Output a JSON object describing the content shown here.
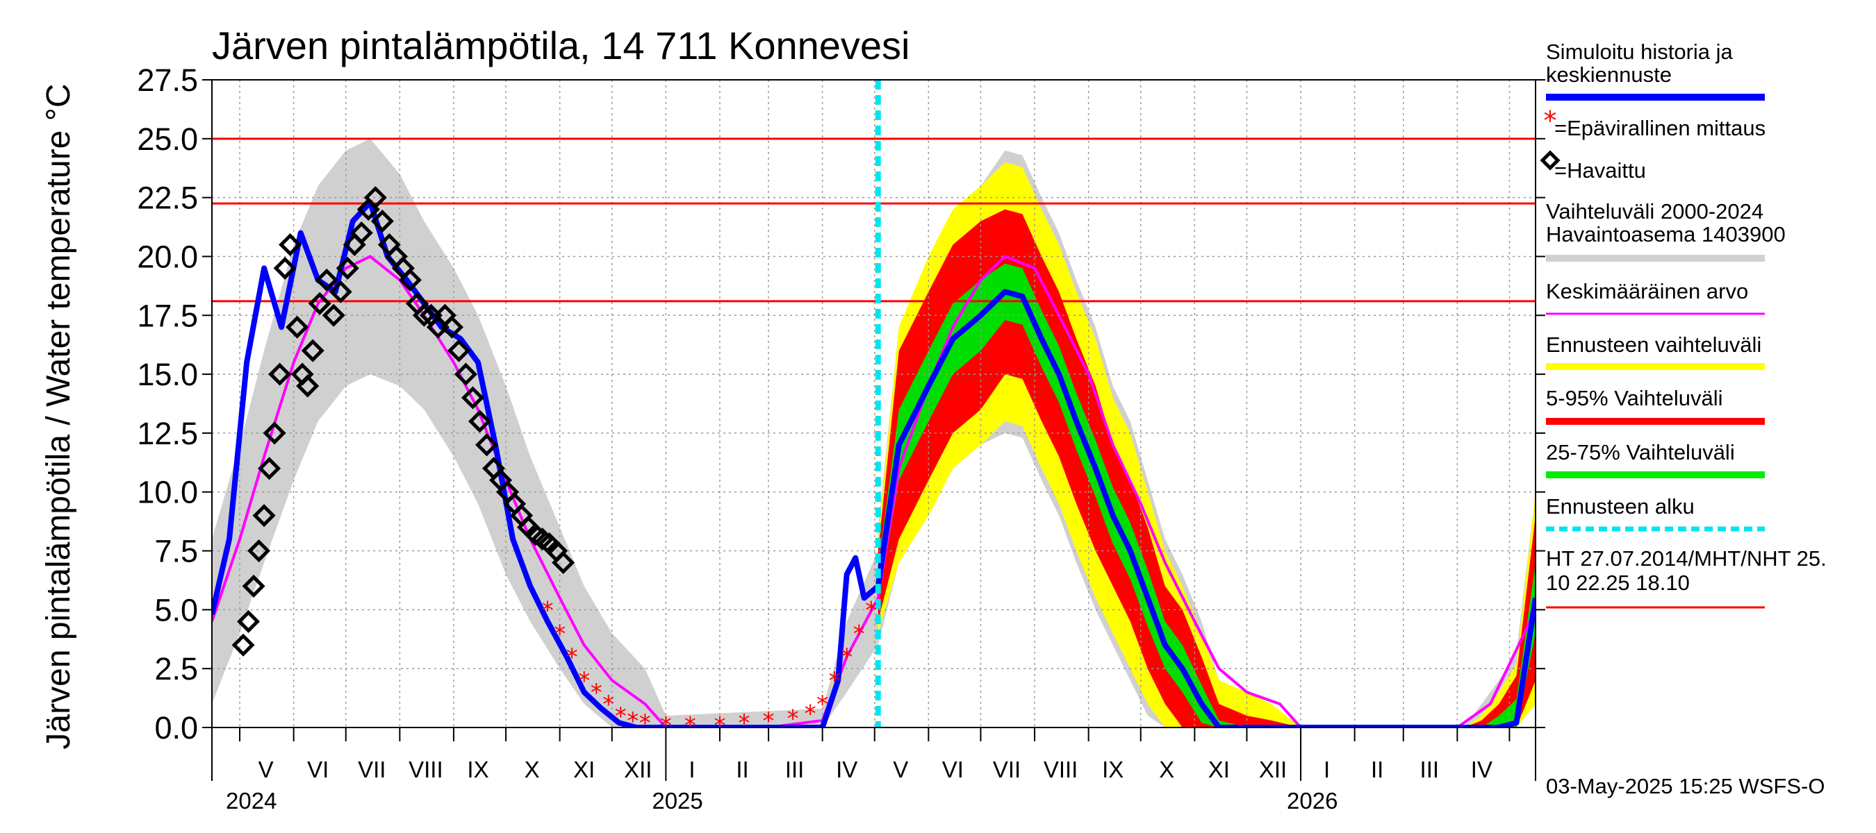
{
  "chart_data": {
    "type": "line",
    "title": "Järven pintalämpötila, 14 711 Konnevesi",
    "ylabel": "Järven pintalämpötila / Water temperature °C",
    "xlabel": "",
    "ylim": [
      0,
      27.5
    ],
    "y_ticks": [
      "0.0",
      "2.5",
      "5.0",
      "7.5",
      "10.0",
      "12.5",
      "15.0",
      "17.5",
      "20.0",
      "22.5",
      "25.0",
      "27.5"
    ],
    "x_range": [
      "2024-04-15",
      "2026-05-16"
    ],
    "month_labels": [
      {
        "label": "V",
        "date": "2024-05-16"
      },
      {
        "label": "VI",
        "date": "2024-06-15"
      },
      {
        "label": "VII",
        "date": "2024-07-16"
      },
      {
        "label": "VIII",
        "date": "2024-08-16"
      },
      {
        "label": "IX",
        "date": "2024-09-15"
      },
      {
        "label": "X",
        "date": "2024-10-16"
      },
      {
        "label": "XI",
        "date": "2024-11-15"
      },
      {
        "label": "XII",
        "date": "2024-12-16"
      },
      {
        "label": "I",
        "date": "2025-01-16"
      },
      {
        "label": "II",
        "date": "2025-02-14"
      },
      {
        "label": "III",
        "date": "2025-03-16"
      },
      {
        "label": "IV",
        "date": "2025-04-15"
      },
      {
        "label": "V",
        "date": "2025-05-16"
      },
      {
        "label": "VI",
        "date": "2025-06-15"
      },
      {
        "label": "VII",
        "date": "2025-07-16"
      },
      {
        "label": "VIII",
        "date": "2025-08-16"
      },
      {
        "label": "IX",
        "date": "2025-09-15"
      },
      {
        "label": "X",
        "date": "2025-10-16"
      },
      {
        "label": "XI",
        "date": "2025-11-15"
      },
      {
        "label": "XII",
        "date": "2025-12-16"
      },
      {
        "label": "I",
        "date": "2026-01-16"
      },
      {
        "label": "II",
        "date": "2026-02-14"
      },
      {
        "label": "III",
        "date": "2026-03-16"
      },
      {
        "label": "IV",
        "date": "2026-04-15"
      }
    ],
    "year_labels": [
      {
        "label": "2024",
        "date": "2024-05-01"
      },
      {
        "label": "2025",
        "date": "2025-01-01"
      },
      {
        "label": "2026",
        "date": "2026-01-01"
      }
    ],
    "reference_lines": [
      {
        "label": "HT 27.07.2014",
        "value": 25.0,
        "color": "#ff0000"
      },
      {
        "label": "MHT",
        "value": 22.25,
        "color": "#ff0000"
      },
      {
        "label": "NHT",
        "value": 18.1,
        "color": "#ff0000"
      }
    ],
    "forecast_start": "2025-05-03",
    "series": [
      {
        "name": "Simuloitu historia ja keskiennuste",
        "color": "#0000ff",
        "x": [
          "2024-04-15",
          "2024-04-25",
          "2024-05-05",
          "2024-05-15",
          "2024-05-25",
          "2024-06-05",
          "2024-06-15",
          "2024-06-25",
          "2024-07-05",
          "2024-07-15",
          "2024-07-25",
          "2024-08-05",
          "2024-08-15",
          "2024-08-25",
          "2024-09-05",
          "2024-09-15",
          "2024-09-25",
          "2024-10-05",
          "2024-10-15",
          "2024-10-25",
          "2024-11-05",
          "2024-11-15",
          "2024-11-25",
          "2024-12-05",
          "2024-12-15",
          "2025-01-01",
          "2025-02-01",
          "2025-03-01",
          "2025-04-01",
          "2025-04-10",
          "2025-04-15",
          "2025-04-20",
          "2025-04-25",
          "2025-05-03",
          "2025-05-15",
          "2025-06-01",
          "2025-06-15",
          "2025-07-01",
          "2025-07-15",
          "2025-07-25",
          "2025-08-05",
          "2025-08-15",
          "2025-08-25",
          "2025-09-05",
          "2025-09-15",
          "2025-09-25",
          "2025-10-05",
          "2025-10-15",
          "2025-10-25",
          "2025-11-05",
          "2025-11-15",
          "2025-12-01",
          "2026-01-01",
          "2026-02-01",
          "2026-03-01",
          "2026-04-01",
          "2026-04-15",
          "2026-04-25",
          "2026-05-05",
          "2026-05-16"
        ],
        "y": [
          4.8,
          8.0,
          15.5,
          19.5,
          17.0,
          21.0,
          19.0,
          18.5,
          21.5,
          22.3,
          20.0,
          19.0,
          18.0,
          17.0,
          16.5,
          15.5,
          12.0,
          8.0,
          6.0,
          4.5,
          3.0,
          1.5,
          0.8,
          0.2,
          0,
          0,
          0,
          0,
          0,
          2.0,
          6.5,
          7.2,
          5.5,
          6.0,
          12.0,
          14.5,
          16.5,
          17.5,
          18.5,
          18.3,
          16.5,
          15.0,
          13.0,
          11.0,
          9.0,
          7.5,
          5.5,
          3.5,
          2.5,
          1.0,
          0,
          0,
          0,
          0,
          0,
          0,
          0,
          0,
          0.2,
          5.5
        ]
      },
      {
        "name": "Keskimääräinen arvo",
        "color": "#ff00ff",
        "x": [
          "2024-04-15",
          "2024-05-01",
          "2024-05-15",
          "2024-06-01",
          "2024-06-15",
          "2024-07-01",
          "2024-07-15",
          "2024-08-01",
          "2024-08-15",
          "2024-09-01",
          "2024-09-15",
          "2024-10-01",
          "2024-10-15",
          "2024-11-01",
          "2024-11-15",
          "2024-12-01",
          "2024-12-20",
          "2025-01-01",
          "2025-02-01",
          "2025-03-01",
          "2025-04-01",
          "2025-04-15",
          "2025-05-03",
          "2025-05-15",
          "2025-06-01",
          "2025-06-15",
          "2025-07-01",
          "2025-07-15",
          "2025-08-01",
          "2025-08-15",
          "2025-09-01",
          "2025-09-15",
          "2025-10-01",
          "2025-10-15",
          "2025-11-01",
          "2025-11-15",
          "2025-12-01",
          "2025-12-20",
          "2026-01-01",
          "2026-04-01",
          "2026-04-20",
          "2026-05-16"
        ],
        "y": [
          4.5,
          8.0,
          11.5,
          15.5,
          18.0,
          19.5,
          20.0,
          19.0,
          17.5,
          15.5,
          13.5,
          10.5,
          8.0,
          5.5,
          3.5,
          2.0,
          1.0,
          0,
          0,
          0,
          0.3,
          3.0,
          5.5,
          11.0,
          14.5,
          17.0,
          19.0,
          20.0,
          19.5,
          17.5,
          15.0,
          12.0,
          9.5,
          7.0,
          4.5,
          2.5,
          1.5,
          1.0,
          0,
          0,
          1.0,
          5.0
        ]
      }
    ],
    "observed": {
      "name": "=Havaittu",
      "x": [
        "2024-05-03",
        "2024-05-06",
        "2024-05-09",
        "2024-05-12",
        "2024-05-15",
        "2024-05-18",
        "2024-05-21",
        "2024-05-24",
        "2024-05-27",
        "2024-05-30",
        "2024-06-03",
        "2024-06-06",
        "2024-06-09",
        "2024-06-12",
        "2024-06-16",
        "2024-06-20",
        "2024-06-24",
        "2024-06-28",
        "2024-07-02",
        "2024-07-06",
        "2024-07-10",
        "2024-07-14",
        "2024-07-18",
        "2024-07-22",
        "2024-07-26",
        "2024-07-30",
        "2024-08-03",
        "2024-08-07",
        "2024-08-11",
        "2024-08-15",
        "2024-08-19",
        "2024-08-23",
        "2024-08-27",
        "2024-08-31",
        "2024-09-04",
        "2024-09-08",
        "2024-09-12",
        "2024-09-16",
        "2024-09-20",
        "2024-09-24",
        "2024-09-28",
        "2024-10-02",
        "2024-10-06",
        "2024-10-10",
        "2024-10-14",
        "2024-10-18",
        "2024-10-22",
        "2024-10-26",
        "2024-10-30",
        "2024-11-03"
      ],
      "y": [
        3.5,
        4.5,
        6.0,
        7.5,
        9.0,
        11.0,
        12.5,
        15.0,
        19.5,
        20.5,
        17.0,
        15.0,
        14.5,
        16.0,
        18.0,
        19.0,
        17.5,
        18.5,
        19.5,
        20.5,
        21.0,
        22.0,
        22.5,
        21.5,
        20.5,
        20.0,
        19.5,
        19.0,
        18.0,
        17.5,
        17.5,
        17.0,
        17.5,
        17.0,
        16.0,
        15.0,
        14.0,
        13.0,
        12.0,
        11.0,
        10.5,
        10.0,
        9.5,
        9.0,
        8.5,
        8.2,
        8.0,
        7.8,
        7.5,
        7.0
      ]
    },
    "unofficial": {
      "name": "=Epävirallinen mittaus",
      "x": [
        "2024-10-25",
        "2024-11-01",
        "2024-11-08",
        "2024-11-15",
        "2024-11-22",
        "2024-11-29",
        "2024-12-06",
        "2024-12-13",
        "2024-12-20",
        "2025-01-01",
        "2025-01-15",
        "2025-02-01",
        "2025-02-15",
        "2025-03-01",
        "2025-03-15",
        "2025-03-25",
        "2025-04-01",
        "2025-04-08",
        "2025-04-15",
        "2025-04-22",
        "2025-04-29"
      ],
      "y": [
        5.0,
        4.0,
        3.0,
        2.0,
        1.5,
        1.0,
        0.5,
        0.3,
        0.2,
        0.1,
        0.1,
        0.1,
        0.2,
        0.3,
        0.4,
        0.6,
        1.0,
        2.0,
        3.0,
        4.0,
        5.0
      ]
    },
    "band_mid": {
      "x": [
        "2024-04-15",
        "2024-05-01",
        "2024-05-15",
        "2024-06-01",
        "2024-06-15",
        "2024-07-01",
        "2024-07-15",
        "2024-08-01",
        "2024-08-15",
        "2024-09-01",
        "2024-09-15",
        "2024-10-01",
        "2024-10-15",
        "2024-11-01",
        "2024-11-15",
        "2024-12-01",
        "2024-12-20",
        "2025-01-01",
        "2025-04-01",
        "2025-04-15",
        "2025-05-03"
      ],
      "y": [
        4.5,
        8.0,
        11.5,
        15.5,
        18.0,
        19.5,
        20.0,
        19.0,
        17.5,
        15.5,
        13.5,
        10.5,
        8.0,
        5.5,
        3.5,
        2.0,
        1.0,
        0,
        0.3,
        3.0,
        5.5
      ]
    },
    "band_half": [
      3.5,
      4.0,
      4.5,
      5.0,
      5.0,
      5.0,
      5.0,
      4.5,
      4.0,
      4.0,
      4.0,
      4.0,
      3.5,
      3.0,
      2.5,
      2.0,
      1.5,
      0.5,
      0.5,
      1.5,
      2.0
    ],
    "forecast_x": [
      "2025-05-03",
      "2025-05-15",
      "2025-06-01",
      "2025-06-15",
      "2025-07-01",
      "2025-07-15",
      "2025-07-25",
      "2025-08-05",
      "2025-08-15",
      "2025-08-25",
      "2025-09-05",
      "2025-09-15",
      "2025-09-25",
      "2025-10-05",
      "2025-10-15",
      "2025-10-25",
      "2025-11-05",
      "2025-11-15",
      "2025-12-01",
      "2025-12-15",
      "2026-01-01",
      "2026-03-25",
      "2026-04-05",
      "2026-04-15",
      "2026-04-25",
      "2026-05-05",
      "2026-05-16"
    ],
    "forecast_mid": [
      6.0,
      12.0,
      14.5,
      16.5,
      17.5,
      18.5,
      18.3,
      16.5,
      15.0,
      13.0,
      11.0,
      9.0,
      7.5,
      5.5,
      3.5,
      2.5,
      1.0,
      0,
      0,
      0,
      0,
      0,
      0,
      0,
      0,
      0.2,
      5.5
    ],
    "forecast_bands": [
      {
        "name": "Vaihteluväli 2000-2024 Havaintoasema 1403900",
        "color": "#d0d0d0",
        "half": [
          2.5,
          5.0,
          5.5,
          5.5,
          5.5,
          6.0,
          6.0,
          6.0,
          6.0,
          6.0,
          6.0,
          5.5,
          5.5,
          5.0,
          4.5,
          4.0,
          3.5,
          2.0,
          1.5,
          1.0,
          0,
          0,
          0,
          1.0,
          2.0,
          3.0,
          4.5
        ]
      },
      {
        "name": "Ennusteen vaihteluväli",
        "color": "#ffff00",
        "half": [
          2.0,
          5.0,
          5.5,
          5.5,
          5.5,
          5.5,
          5.5,
          5.5,
          5.5,
          5.5,
          5.5,
          5.0,
          5.0,
          4.5,
          4.0,
          3.5,
          3.0,
          2.0,
          1.5,
          1.0,
          0,
          0,
          0,
          0.5,
          1.5,
          2.5,
          4.5
        ]
      },
      {
        "name": "5-95% Vaihteluväli",
        "color": "#ff0000",
        "half": [
          1.5,
          4.0,
          4.0,
          4.0,
          4.0,
          3.5,
          3.5,
          3.5,
          3.5,
          3.5,
          3.5,
          3.0,
          3.0,
          3.0,
          2.5,
          2.5,
          2.0,
          1.0,
          0.5,
          0.3,
          0,
          0,
          0,
          0.3,
          1.0,
          2.0,
          3.5
        ]
      },
      {
        "name": "25-75% Vaihteluväli",
        "color": "#00dd00",
        "half": [
          0.8,
          1.5,
          1.5,
          1.5,
          1.5,
          1.2,
          1.2,
          1.2,
          1.2,
          1.2,
          1.2,
          1.2,
          1.2,
          1.2,
          1.0,
          1.0,
          0.8,
          0.3,
          0,
          0,
          0,
          0,
          0,
          0,
          0.5,
          1.0,
          1.5
        ]
      }
    ],
    "legend": [
      {
        "label": "Simuloitu historia ja",
        "label2": "keskiennuste",
        "color": "#0000ff",
        "style": "line"
      },
      {
        "label": "=Epävirallinen mittaus",
        "color": "#ff0000",
        "style": "star"
      },
      {
        "label": "=Havaittu",
        "color": "#000000",
        "style": "diamond"
      },
      {
        "label": "Vaihteluväli 2000-2024",
        "label2": " Havaintoasema 1403900",
        "color": "#d0d0d0",
        "style": "line"
      },
      {
        "label": "Keskimääräinen arvo",
        "color": "#ff00ff",
        "style": "thin"
      },
      {
        "label": "Ennusteen vaihteluväli",
        "color": "#ffff00",
        "style": "line"
      },
      {
        "label": "5-95% Vaihteluväli",
        "color": "#ff0000",
        "style": "line"
      },
      {
        "label": "25-75% Vaihteluväli",
        "color": "#00ee00",
        "style": "line"
      },
      {
        "label": "Ennusteen alku",
        "color": "#00e5ee",
        "style": "dashed"
      },
      {
        "label": "HT 27.07.2014/MHT/NHT 25.",
        "label2": "10 22.25 18.10",
        "color": "#ff0000",
        "style": "thin"
      }
    ],
    "grid": true,
    "legend_position": "right",
    "footer": "03-May-2025 15:25 WSFS-O"
  }
}
